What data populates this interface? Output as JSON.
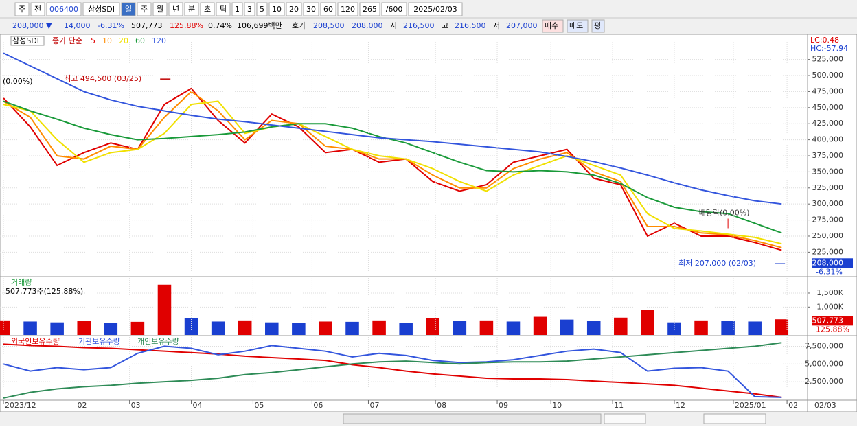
{
  "toolbar": {
    "items": [
      "주",
      "전",
      "006400",
      "삼성SDI",
      "일",
      "주",
      "월",
      "년",
      "분",
      "초",
      "틱",
      "1",
      "3",
      "5",
      "10",
      "20",
      "30",
      "60",
      "120",
      "265",
      "/600",
      "2025/02/03"
    ]
  },
  "info": {
    "items": [
      "208,000 ▼",
      "14,000",
      "-6.31%",
      "507,773",
      "125.88%",
      "0.74%",
      "106,699백만",
      "호가",
      "208,500",
      "208,000",
      "시",
      "216,500",
      "고",
      "216,500",
      "저",
      "207,000",
      "매수",
      "매도",
      "평"
    ]
  },
  "chart_data": [
    {
      "type": "line",
      "legend_title": "삼성SDI",
      "legend_label": "종가 단순",
      "base_label": "(0,00%)",
      "x": [
        0,
        10,
        20,
        30,
        40,
        50,
        60,
        70,
        80,
        90,
        100,
        110,
        120,
        130,
        140,
        150,
        160,
        170,
        180,
        190,
        200,
        210,
        220,
        230,
        240,
        250,
        260,
        270,
        280,
        290
      ],
      "series": [
        {
          "name": "5",
          "color": "#e00000",
          "values": [
            465000,
            420000,
            360000,
            380000,
            395000,
            385000,
            455000,
            480000,
            430000,
            395000,
            440000,
            420000,
            380000,
            385000,
            365000,
            370000,
            335000,
            320000,
            330000,
            365000,
            375000,
            385000,
            340000,
            330000,
            250000,
            270000,
            250000,
            250000,
            240000,
            228000
          ]
        },
        {
          "name": "10",
          "color": "#ff8c00",
          "values": [
            460000,
            435000,
            375000,
            370000,
            390000,
            385000,
            435000,
            475000,
            445000,
            400000,
            430000,
            425000,
            390000,
            385000,
            370000,
            370000,
            345000,
            325000,
            325000,
            355000,
            370000,
            380000,
            350000,
            335000,
            265000,
            265000,
            255000,
            252000,
            243000,
            232000
          ]
        },
        {
          "name": "20",
          "color": "#f0e000",
          "values": [
            455000,
            445000,
            400000,
            365000,
            380000,
            385000,
            410000,
            455000,
            460000,
            410000,
            420000,
            425000,
            405000,
            385000,
            375000,
            370000,
            355000,
            335000,
            320000,
            345000,
            360000,
            375000,
            360000,
            345000,
            285000,
            262000,
            258000,
            253000,
            248000,
            238000
          ]
        },
        {
          "name": "60",
          "color": "#1a9a3a",
          "values": [
            460000,
            445000,
            432000,
            418000,
            408000,
            400000,
            402000,
            405000,
            408000,
            412000,
            420000,
            425000,
            425000,
            418000,
            405000,
            395000,
            380000,
            365000,
            352000,
            350000,
            352000,
            350000,
            345000,
            332000,
            310000,
            295000,
            288000,
            285000,
            270000,
            255000
          ]
        },
        {
          "name": "120",
          "color": "#3355dd",
          "values": [
            535000,
            515000,
            495000,
            475000,
            462000,
            452000,
            445000,
            438000,
            432000,
            428000,
            423000,
            418000,
            413000,
            408000,
            403000,
            400000,
            397000,
            393000,
            389000,
            385000,
            381000,
            374000,
            366000,
            356000,
            345000,
            333000,
            322000,
            313000,
            305000,
            300000
          ]
        }
      ],
      "annotations": [
        {
          "text": "최고 494,500 (03/25)",
          "x": 63,
          "value": 494500
        },
        {
          "text": "배당락(0.00%)",
          "x": 270,
          "value": 258000
        },
        {
          "text": "최저 207,000 (02/03)",
          "x": 292,
          "value": 207000
        }
      ],
      "xlim": [
        0,
        293
      ],
      "ylim": [
        188000,
        562000
      ],
      "yticks": [
        {
          "value": 225000,
          "label": "225,000"
        },
        {
          "value": 250000,
          "label": "250,000"
        },
        {
          "value": 275000,
          "label": "275,000"
        },
        {
          "value": 300000,
          "label": "300,000"
        },
        {
          "value": 325000,
          "label": "325,000"
        },
        {
          "value": 350000,
          "label": "350,000"
        },
        {
          "value": 375000,
          "label": "375,000"
        },
        {
          "value": 400000,
          "label": "400,000"
        },
        {
          "value": 425000,
          "label": "425,000"
        },
        {
          "value": 450000,
          "label": "450,000"
        },
        {
          "value": 475000,
          "label": "475,000"
        },
        {
          "value": 500000,
          "label": "500,000"
        },
        {
          "value": 525000,
          "label": "525,000"
        }
      ],
      "right_labels": [
        "LC:0.48",
        "HC:-57.94"
      ],
      "last": {
        "value": 208000,
        "label": "208,000"
      },
      "change": "-6.31%"
    },
    {
      "type": "bar",
      "title": "거래량",
      "subtitle": "507,773주(125.88%)",
      "color_up": "#e00000",
      "color_down": "#1a3fd0",
      "x": [
        0,
        10,
        20,
        30,
        40,
        50,
        60,
        70,
        80,
        90,
        100,
        110,
        120,
        130,
        140,
        150,
        160,
        170,
        180,
        190,
        200,
        210,
        220,
        230,
        240,
        250,
        260,
        270,
        280,
        290
      ],
      "values": [
        520,
        480,
        450,
        500,
        430,
        470,
        1800,
        600,
        480,
        520,
        450,
        430,
        480,
        470,
        520,
        440,
        600,
        500,
        520,
        480,
        650,
        550,
        500,
        620,
        900,
        450,
        520,
        500,
        480,
        560
      ],
      "xlim": [
        0,
        293
      ],
      "ylim": [
        0,
        2040
      ],
      "yticks": [
        {
          "value": 1000,
          "label": "1,000K"
        },
        {
          "value": 1500,
          "label": "1,500K"
        }
      ],
      "last": {
        "value": 507.773,
        "label": "507,773"
      },
      "change": "125.88%"
    },
    {
      "type": "line",
      "x": [
        0,
        10,
        20,
        30,
        40,
        50,
        60,
        70,
        80,
        90,
        100,
        110,
        120,
        130,
        140,
        150,
        160,
        170,
        180,
        190,
        200,
        210,
        220,
        230,
        240,
        250,
        260,
        270,
        280,
        290
      ],
      "series": [
        {
          "name": "외국인보유수량",
          "color": "#e00000",
          "values": [
            7800000,
            7600000,
            7500000,
            7300000,
            7200000,
            7000000,
            6800000,
            6600000,
            6400000,
            6100000,
            5900000,
            5700000,
            5500000,
            4900000,
            4500000,
            4000000,
            3600000,
            3300000,
            3000000,
            2900000,
            2900000,
            2800000,
            2600000,
            2400000,
            2200000,
            2000000,
            1600000,
            1200000,
            800000,
            300000
          ]
        },
        {
          "name": "기관보유수량",
          "color": "#3355dd",
          "values": [
            5000000,
            4000000,
            4500000,
            4200000,
            4500000,
            6500000,
            7500000,
            7200000,
            6300000,
            6800000,
            7600000,
            7200000,
            6800000,
            6000000,
            6500000,
            6200000,
            5500000,
            5200000,
            5300000,
            5600000,
            6200000,
            6800000,
            7100000,
            6600000,
            4000000,
            4400000,
            4500000,
            4000000,
            400000,
            300000
          ]
        },
        {
          "name": "개인보유수량",
          "color": "#2e8b57",
          "values": [
            200000,
            1000000,
            1500000,
            1800000,
            2000000,
            2300000,
            2500000,
            2700000,
            3000000,
            3500000,
            3800000,
            4200000,
            4600000,
            5000000,
            5300000,
            5400000,
            5200000,
            5000000,
            5200000,
            5300000,
            5300000,
            5400000,
            5700000,
            6000000,
            6300000,
            6600000,
            6900000,
            7200000,
            7500000,
            8000000
          ]
        }
      ],
      "xlim": [
        0,
        293
      ],
      "ylim": [
        0,
        8800000
      ],
      "yticks": [
        {
          "value": 2500000,
          "label": "2,500,000"
        },
        {
          "value": 5000000,
          "label": "5,000,000"
        },
        {
          "value": 7500000,
          "label": "7,500,000"
        }
      ],
      "xticks": [
        {
          "value": 0,
          "label": "2023/12"
        },
        {
          "value": 27,
          "label": "02"
        },
        {
          "value": 47,
          "label": "03"
        },
        {
          "value": 70,
          "label": "04"
        },
        {
          "value": 93,
          "label": "05"
        },
        {
          "value": 115,
          "label": "06"
        },
        {
          "value": 136,
          "label": "07"
        },
        {
          "value": 161,
          "label": "08"
        },
        {
          "value": 184,
          "label": "09"
        },
        {
          "value": 204,
          "label": "10"
        },
        {
          "value": 227,
          "label": "11"
        },
        {
          "value": 250,
          "label": "12"
        },
        {
          "value": 272,
          "label": "2025/01"
        },
        {
          "value": 292,
          "label": "02"
        }
      ],
      "end_label": "02/03"
    }
  ]
}
